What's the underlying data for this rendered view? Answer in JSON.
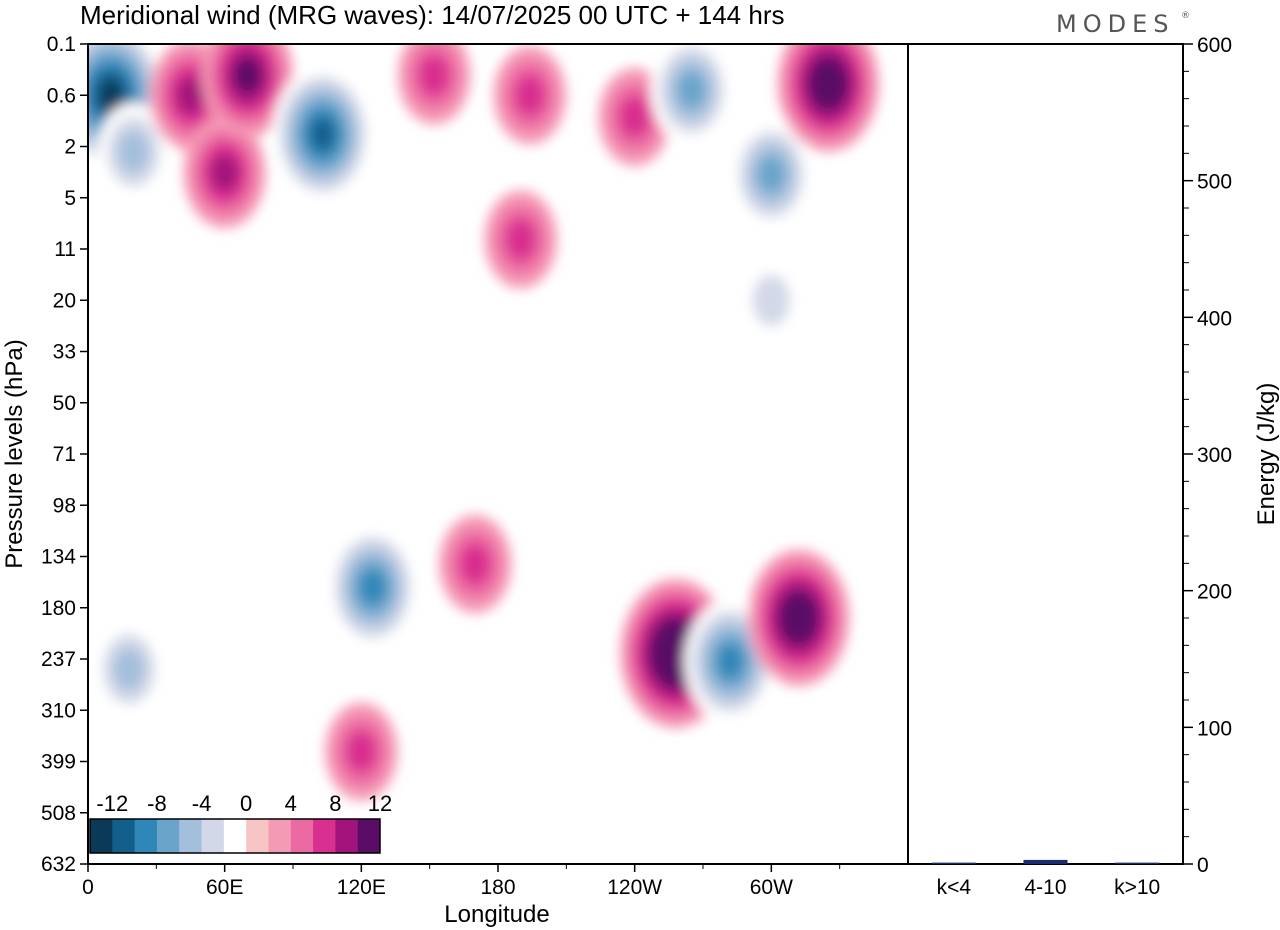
{
  "header": {
    "title": "Meridional wind (MRG waves):  14/07/2025  00 UTC  + 144 hrs",
    "brand": "MODES",
    "brand_mark": "®"
  },
  "chart_data": [
    {
      "type": "heatmap",
      "xlabel": "Longitude",
      "ylabel": "Pressure levels (hPa)",
      "x_ticks": [
        "0",
        "60E",
        "120E",
        "180",
        "120W",
        "60W"
      ],
      "x_tick_values": [
        0,
        60,
        120,
        180,
        240,
        300
      ],
      "xlim": [
        0,
        360
      ],
      "y_ticks": [
        "0.1",
        "0.6",
        "2",
        "5",
        "11",
        "20",
        "33",
        "50",
        "71",
        "98",
        "134",
        "180",
        "237",
        "310",
        "399",
        "508",
        "632"
      ],
      "colorbar": {
        "labels": [
          "-12",
          "-8",
          "-4",
          "0",
          "4",
          "8",
          "12"
        ],
        "label_values": [
          -12,
          -8,
          -4,
          0,
          4,
          8,
          12
        ],
        "levels": [
          -14,
          -12,
          -10,
          -8,
          -6,
          -4,
          -2,
          2,
          4,
          6,
          8,
          10,
          12,
          14
        ],
        "colors": [
          "#0b3a57",
          "#125f8c",
          "#2f86b8",
          "#6aa4cb",
          "#a4bfdc",
          "#d3d8e8",
          "#ffffff",
          "#f8c5c5",
          "#f59ab5",
          "#ec6aa3",
          "#d92f8f",
          "#a3137c",
          "#5a0c66"
        ]
      },
      "features": [
        {
          "lon": 10,
          "lev": 0.6,
          "value": -14
        },
        {
          "lon": 20,
          "lev": 2.2,
          "value": -6
        },
        {
          "lon": 45,
          "lev": 0.6,
          "value": 8
        },
        {
          "lon": 60,
          "lev": 3.2,
          "value": 8
        },
        {
          "lon": 70,
          "lev": 0.3,
          "value": 10
        },
        {
          "lon": 103,
          "lev": 1.5,
          "value": -12
        },
        {
          "lon": 152,
          "lev": 0.3,
          "value": 6
        },
        {
          "lon": 194,
          "lev": 0.6,
          "value": 6
        },
        {
          "lon": 190,
          "lev": 9.5,
          "value": 6
        },
        {
          "lon": 240,
          "lev": 1.0,
          "value": 6
        },
        {
          "lon": 265,
          "lev": 0.5,
          "value": -8
        },
        {
          "lon": 300,
          "lev": 3.3,
          "value": -8
        },
        {
          "lon": 325,
          "lev": 0.4,
          "value": 12
        },
        {
          "lon": 300,
          "lev": 20,
          "value": -4
        },
        {
          "lon": 125,
          "lev": 160,
          "value": -10
        },
        {
          "lon": 170,
          "lev": 140,
          "value": 6
        },
        {
          "lon": 258,
          "lev": 230,
          "value": 14
        },
        {
          "lon": 282,
          "lev": 240,
          "value": -10
        },
        {
          "lon": 312,
          "lev": 190,
          "value": 12
        },
        {
          "lon": 120,
          "lev": 380,
          "value": 6
        },
        {
          "lon": 18,
          "lev": 250,
          "value": -6
        }
      ]
    },
    {
      "type": "bar",
      "categories": [
        "k<4",
        "4-10",
        "k>10"
      ],
      "values": [
        1,
        3,
        1
      ],
      "ylabel": "Energy (J/kg)",
      "ylim": [
        0,
        600
      ],
      "y_ticks": [
        "0",
        "100",
        "200",
        "300",
        "400",
        "500",
        "600"
      ],
      "y_tick_values": [
        0,
        100,
        200,
        300,
        400,
        500,
        600
      ]
    }
  ]
}
